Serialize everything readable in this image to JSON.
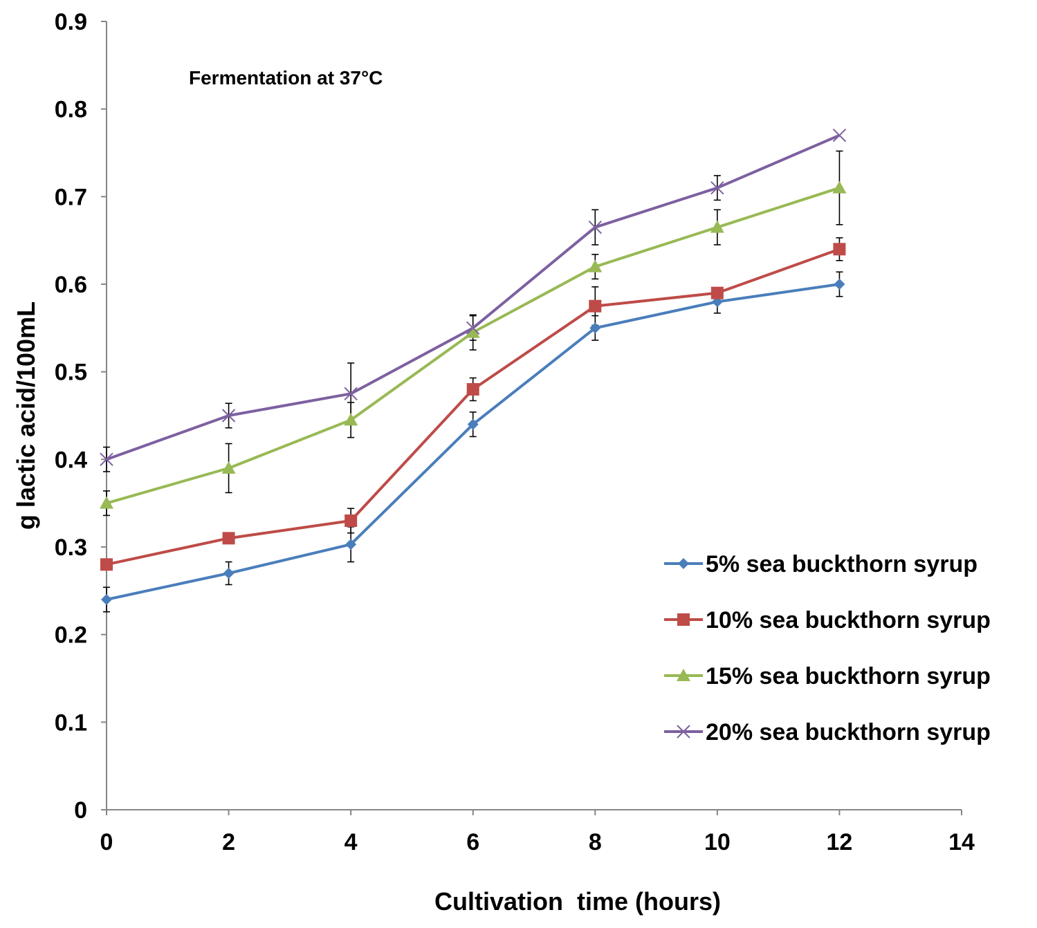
{
  "chart_data": {
    "type": "line",
    "title": "",
    "annotation": "Fermentation at 37°C",
    "xlabel": "Cultivation  time (hours)",
    "ylabel": "g lactic acid/100mL",
    "xlim": [
      0,
      14
    ],
    "ylim": [
      0,
      0.9
    ],
    "x_ticks": [
      "0",
      "2",
      "4",
      "6",
      "8",
      "10",
      "12",
      "14"
    ],
    "y_ticks": [
      "0",
      "0.1",
      "0.2",
      "0.3",
      "0.4",
      "0.5",
      "0.6",
      "0.7",
      "0.8",
      "0.9"
    ],
    "grid": false,
    "legend_position": "right",
    "x": [
      0,
      2,
      4,
      6,
      8,
      10,
      12
    ],
    "series": [
      {
        "name": "5% sea buckthorn syrup",
        "color": "#4a7ebb",
        "marker": "diamond",
        "values": [
          0.24,
          0.27,
          0.303,
          0.44,
          0.55,
          0.58,
          0.6
        ],
        "errors": [
          0.014,
          0.013,
          0.02,
          0.014,
          0.014,
          0.013,
          0.014
        ]
      },
      {
        "name": "10% sea buckthorn syrup",
        "color": "#be4b48",
        "marker": "square",
        "values": [
          0.28,
          0.31,
          0.33,
          0.48,
          0.575,
          0.59,
          0.64
        ],
        "errors": [
          0,
          0,
          0.014,
          0.013,
          0.022,
          0,
          0.013
        ]
      },
      {
        "name": "15% sea buckthorn syrup",
        "color": "#98b954",
        "marker": "triangle",
        "values": [
          0.35,
          0.39,
          0.445,
          0.545,
          0.62,
          0.665,
          0.71
        ],
        "errors": [
          0.014,
          0.028,
          0.02,
          0.02,
          0.014,
          0.02,
          0.042
        ]
      },
      {
        "name": "20% sea buckthorn syrup",
        "color": "#7d60a0",
        "marker": "x",
        "values": [
          0.4,
          0.45,
          0.475,
          0.55,
          0.665,
          0.71,
          0.77
        ],
        "errors": [
          0.014,
          0.014,
          0.035,
          0.014,
          0.02,
          0.014,
          0
        ]
      }
    ]
  }
}
